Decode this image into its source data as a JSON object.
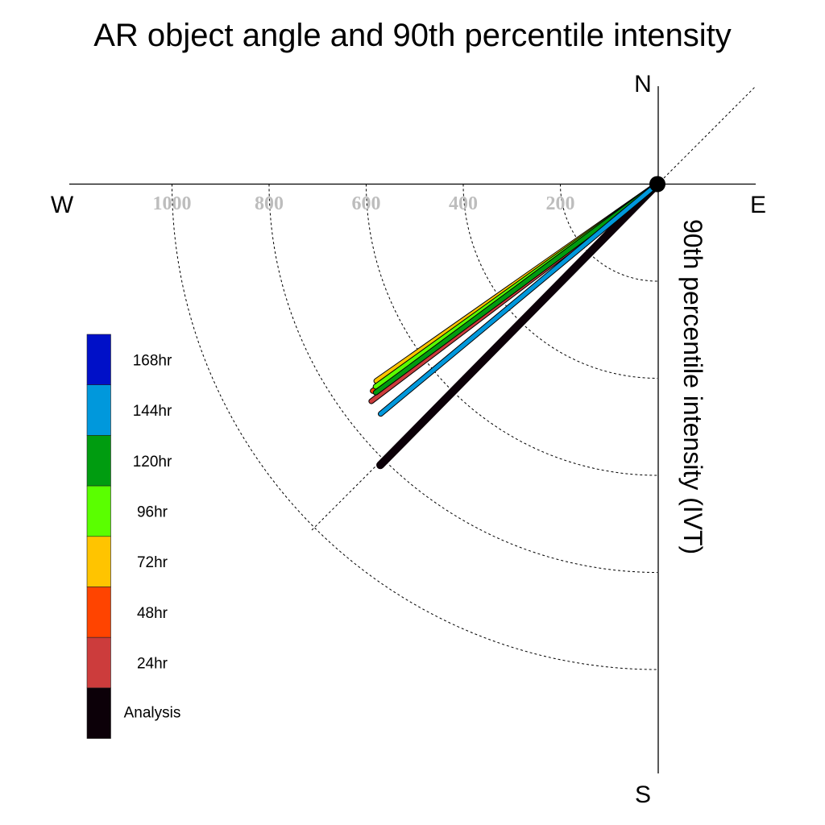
{
  "chart_data": {
    "type": "polar-vector",
    "title": "AR object angle and 90th percentile intensity",
    "ylabel": "90th percentile intensity (IVT)",
    "compass": {
      "north": "N",
      "south": "S",
      "east": "E",
      "west": "W"
    },
    "radial_ticks": [
      200,
      400,
      600,
      800,
      1000
    ],
    "radial_tick_labels": [
      "200",
      "400",
      "600",
      "800",
      "1000"
    ],
    "angle_unit": "degrees clockwise from north",
    "grid": true,
    "legend_placement": "left",
    "series": [
      {
        "name": "168hr",
        "color": "#0010c8",
        "angle": 234,
        "intensity": 725,
        "visible": false
      },
      {
        "name": "144hr",
        "color": "#0098dc",
        "angle": 230.3,
        "intensity": 741
      },
      {
        "name": "120hr",
        "color": "#009c10",
        "angle": 233.5,
        "intensity": 722
      },
      {
        "name": "96hr",
        "color": "#5aff00",
        "angle": 234.3,
        "intensity": 715
      },
      {
        "name": "72hr",
        "color": "#ffc400",
        "angle": 235,
        "intensity": 707
      },
      {
        "name": "48hr",
        "color": "#ff4400",
        "angle": 234,
        "intensity": 725
      },
      {
        "name": "24hr",
        "color": "#cc3c3c",
        "angle": 232.8,
        "intensity": 740
      },
      {
        "name": "Analysis",
        "color": "#0c0008",
        "angle": 224.6,
        "intensity": 813
      }
    ]
  }
}
